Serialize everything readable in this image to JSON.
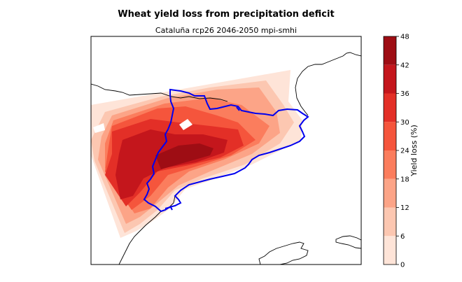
{
  "chart_data": {
    "type": "heatmap",
    "title": "Wheat yield loss from precipitation deficit",
    "subtitle": "Cataluña rcp26 2046-2050 mpi-smhi",
    "colorbar": {
      "label": "Yield loss (%)",
      "ticks": [
        0,
        6,
        12,
        18,
        24,
        30,
        36,
        42,
        48
      ],
      "levels": [
        0,
        6,
        12,
        18,
        24,
        30,
        36,
        42,
        48
      ],
      "colors": [
        "#fee4d8",
        "#fcc7b1",
        "#fca487",
        "#fb7d5d",
        "#f5553c",
        "#e32f27",
        "#c4161c",
        "#9e0d14",
        "#67000d"
      ],
      "range": [
        0,
        48
      ]
    },
    "grid": false,
    "region_outline_color": "#0000ff",
    "coastline_color": "#000000"
  }
}
